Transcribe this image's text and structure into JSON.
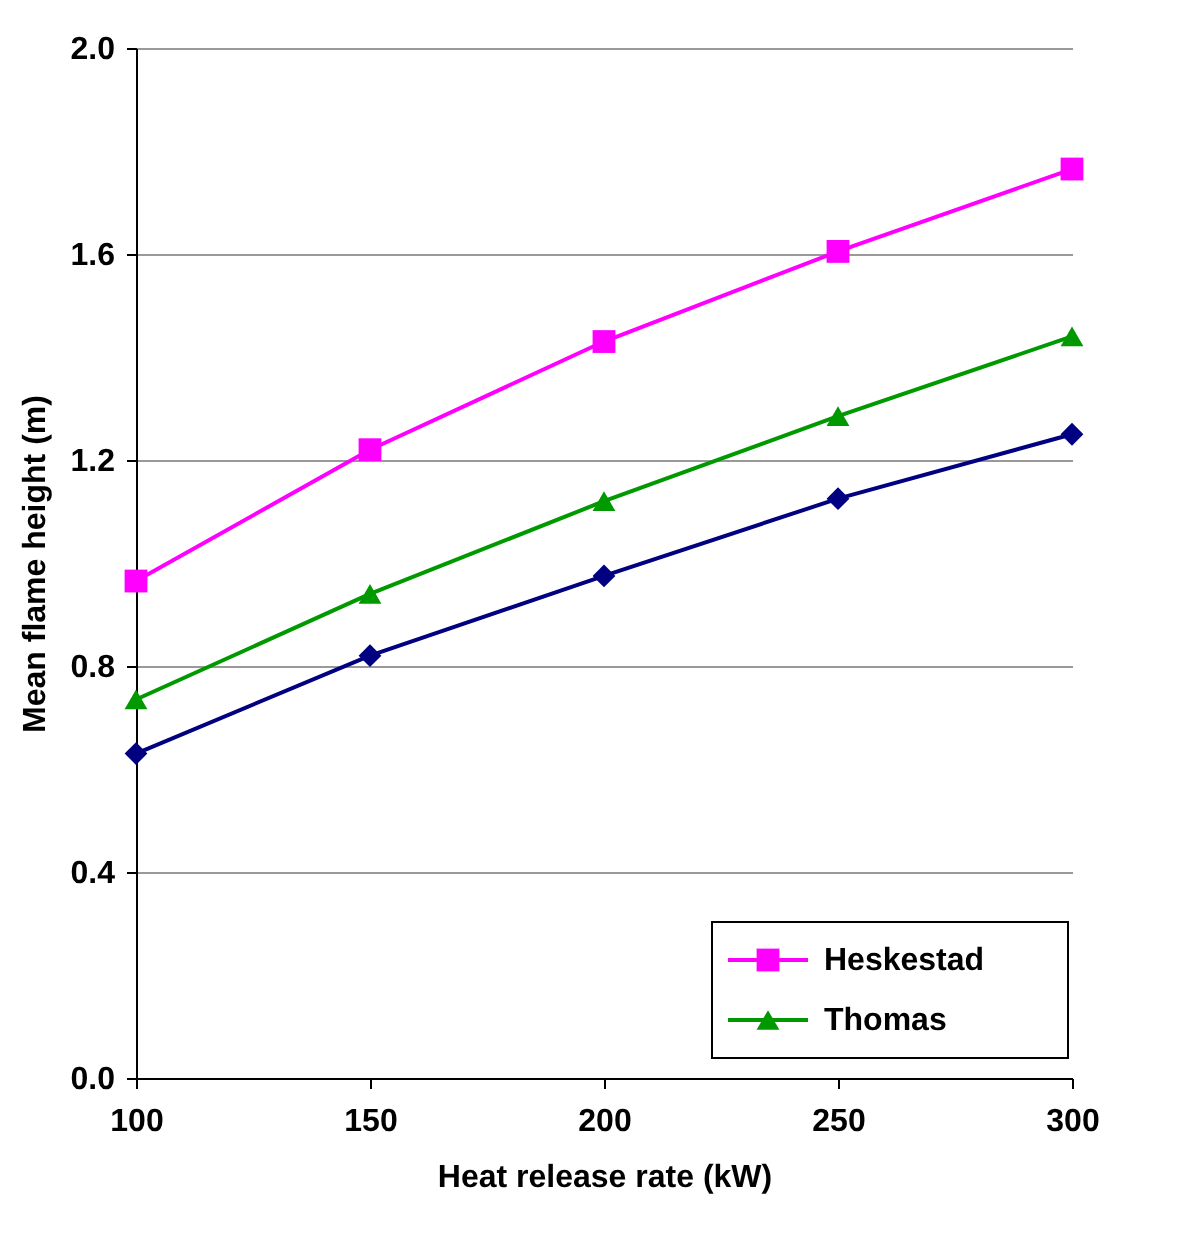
{
  "chart_data": {
    "type": "line",
    "xlabel": "Heat release rate (kW)",
    "ylabel": "Mean flame height (m)",
    "x": [
      100,
      150,
      200,
      250,
      300
    ],
    "series": [
      {
        "color": "#000080",
        "marker": "diamond",
        "values": [
          0.63,
          0.82,
          0.975,
          1.125,
          1.25
        ]
      },
      {
        "name": "Heskestad",
        "color": "#ff00ff",
        "marker": "square",
        "values": [
          0.965,
          1.22,
          1.43,
          1.605,
          1.765
        ]
      },
      {
        "name": "Thomas",
        "color": "#009900",
        "marker": "triangle",
        "values": [
          0.735,
          0.94,
          1.12,
          1.285,
          1.44
        ]
      }
    ],
    "xlim": [
      100,
      300
    ],
    "xticks": [
      100,
      150,
      200,
      250,
      300
    ],
    "ylim": [
      0,
      2.0
    ],
    "yticks": [
      {
        "value": 0,
        "label": "0.0"
      },
      {
        "value": 0.4,
        "label": "0.4"
      },
      {
        "value": 0.8,
        "label": "0.8"
      },
      {
        "value": 1.2,
        "label": "1.2"
      },
      {
        "value": 1.6,
        "label": "1.6"
      },
      {
        "value": 2.0,
        "label": "2.0"
      }
    ],
    "grid": "y",
    "legend": "bottom right",
    "line_style": "solid"
  }
}
